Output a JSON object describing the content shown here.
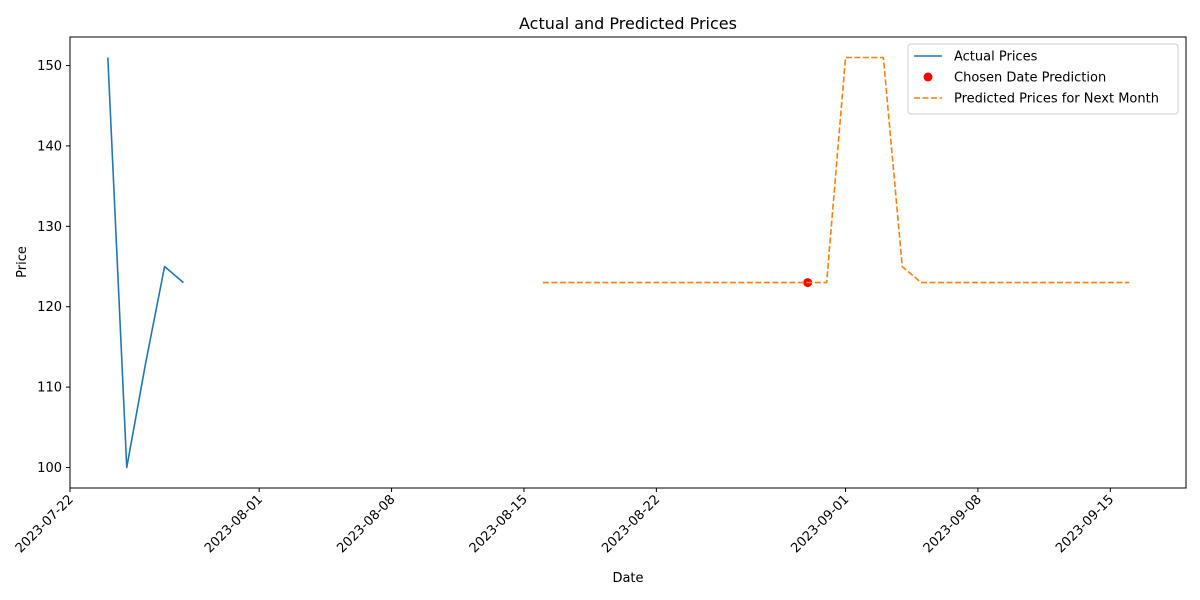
{
  "chart_data": {
    "type": "line",
    "title": "Actual and Predicted Prices",
    "xlabel": "Date",
    "ylabel": "Price",
    "x_axis_type": "date",
    "xlim": [
      "2023-07-22",
      "2023-09-19"
    ],
    "ylim": [
      97.45,
      153.55
    ],
    "x_ticks": [
      "2023-07-22",
      "2023-08-01",
      "2023-08-08",
      "2023-08-15",
      "2023-08-22",
      "2023-09-01",
      "2023-09-08",
      "2023-09-15"
    ],
    "y_ticks": [
      100,
      110,
      120,
      130,
      140,
      150
    ],
    "grid": false,
    "legend_position": "top-right",
    "series": [
      {
        "name": "Actual Prices",
        "kind": "line",
        "style": "solid",
        "color": "#1f77b4",
        "x": [
          "2023-07-24",
          "2023-07-25",
          "2023-07-26",
          "2023-07-27",
          "2023-07-28"
        ],
        "y": [
          151,
          100,
          113,
          125,
          123
        ]
      },
      {
        "name": "Chosen Date Prediction",
        "kind": "scatter",
        "color": "#ff0000",
        "x": [
          "2023-08-30"
        ],
        "y": [
          123
        ]
      },
      {
        "name": "Predicted Prices for Next Month",
        "kind": "line",
        "style": "dashed",
        "color": "#ff7f0e",
        "x": [
          "2023-08-16",
          "2023-08-31",
          "2023-09-01",
          "2023-09-02",
          "2023-09-03",
          "2023-09-04",
          "2023-09-05",
          "2023-09-16"
        ],
        "y": [
          123,
          123,
          151,
          151,
          151,
          125,
          123,
          123
        ]
      }
    ]
  }
}
